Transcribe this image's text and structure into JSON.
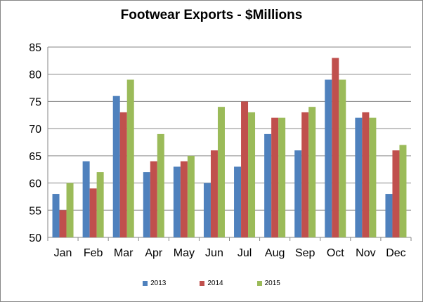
{
  "chart_data": {
    "type": "bar",
    "title": "Footwear Exports - $Millions",
    "xlabel": "",
    "ylabel": "",
    "categories": [
      "Jan",
      "Feb",
      "Mar",
      "Apr",
      "May",
      "Jun",
      "Jul",
      "Aug",
      "Sep",
      "Oct",
      "Nov",
      "Dec"
    ],
    "series": [
      {
        "name": "2013",
        "color": "#4F81BD",
        "values": [
          58,
          64,
          76,
          62,
          63,
          60,
          63,
          69,
          66,
          79,
          72,
          58
        ]
      },
      {
        "name": "2014",
        "color": "#C0504D",
        "values": [
          55,
          59,
          73,
          64,
          64,
          66,
          75,
          72,
          73,
          83,
          73,
          66
        ]
      },
      {
        "name": "2015",
        "color": "#9BBB59",
        "values": [
          60,
          62,
          79,
          69,
          65,
          74,
          73,
          72,
          74,
          79,
          72,
          67
        ]
      }
    ],
    "ylim": [
      50,
      85
    ],
    "yticks": [
      50,
      55,
      60,
      65,
      70,
      75,
      80,
      85
    ],
    "grid": true,
    "legend_position": "bottom"
  }
}
